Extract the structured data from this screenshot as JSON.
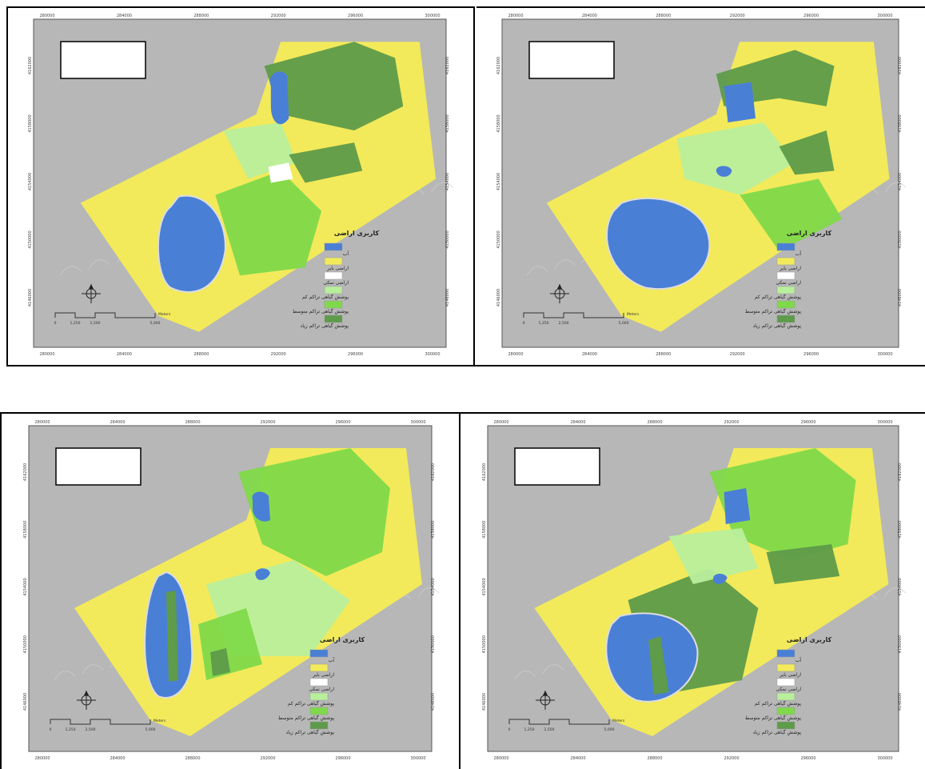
{
  "legend": {
    "title": "کاربری اراضی",
    "items": [
      {
        "label": "آب",
        "color": "#4a7fd6"
      },
      {
        "label": "اراضی بایر",
        "color": "#f2ea5a"
      },
      {
        "label": "اراضی نمکی",
        "color": "#ffffff"
      },
      {
        "label": "پوشش گیاهی تراکم کم",
        "color": "#b9ef9c"
      },
      {
        "label": "پوشش گیاهی تراکم متوسط",
        "color": "#7fd94a"
      },
      {
        "label": "پوشش گیاهی تراکم زیاد",
        "color": "#5e9b4a"
      }
    ]
  },
  "x_ticks": [
    "280000",
    "284000",
    "288000",
    "292000",
    "296000",
    "300000"
  ],
  "y_ticks": [
    "4162000",
    "4158000",
    "4154000",
    "4150000",
    "4146000"
  ],
  "scale": {
    "labels": [
      "0",
      "1,250",
      "2,500",
      "5,000"
    ],
    "unit": "Meters"
  },
  "colors": {
    "hillshade": "#b7b7b7",
    "water": "#4a7fd6",
    "barren": "#f2ea5a",
    "salt": "#ffffff",
    "veg_low": "#b9ef9c",
    "veg_mid": "#7fd94a",
    "veg_high": "#5e9b4a"
  },
  "maps": [
    {
      "id": "map-1",
      "title": ""
    },
    {
      "id": "map-2",
      "title": ""
    },
    {
      "id": "map-3",
      "title": ""
    },
    {
      "id": "map-4",
      "title": ""
    }
  ]
}
